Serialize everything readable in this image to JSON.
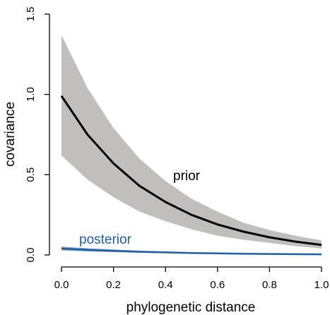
{
  "chart_data": {
    "type": "line",
    "xlabel": "phylogenetic distance",
    "ylabel": "covariance",
    "xlim": [
      0,
      1
    ],
    "ylim": [
      0,
      1.5
    ],
    "x_ticks": [
      "0.0",
      "0.2",
      "0.4",
      "0.6",
      "0.8",
      "1.0"
    ],
    "y_ticks": [
      "0.0",
      "0.5",
      "1.0",
      "1.5"
    ],
    "grid": false,
    "legend": "none",
    "annotations": {
      "prior": "prior",
      "posterior": "posterior"
    },
    "colors": {
      "prior": "#000000",
      "prior_band": "#c0bfbd",
      "posterior": "#1f5fa6"
    },
    "series": [
      {
        "name": "prior",
        "x": [
          0.0,
          0.1,
          0.2,
          0.3,
          0.4,
          0.5,
          0.6,
          0.7,
          0.8,
          0.9,
          1.0
        ],
        "y": [
          0.99,
          0.75,
          0.57,
          0.43,
          0.33,
          0.25,
          0.19,
          0.145,
          0.11,
          0.083,
          0.063
        ],
        "lower": [
          0.62,
          0.47,
          0.36,
          0.27,
          0.21,
          0.16,
          0.12,
          0.095,
          0.075,
          0.055,
          0.04
        ],
        "upper": [
          1.37,
          1.04,
          0.79,
          0.6,
          0.46,
          0.35,
          0.27,
          0.2,
          0.155,
          0.12,
          0.09
        ]
      },
      {
        "name": "posterior",
        "x": [
          0.0,
          0.1,
          0.2,
          0.3,
          0.4,
          0.5,
          0.6,
          0.7,
          0.8,
          0.9,
          1.0
        ],
        "y": [
          0.04,
          0.032,
          0.025,
          0.02,
          0.016,
          0.012,
          0.01,
          0.008,
          0.006,
          0.005,
          0.004
        ],
        "lower": [
          0.028,
          0.022,
          0.018,
          0.014,
          0.011,
          0.008,
          0.006,
          0.004,
          0.003,
          0.002,
          0.001
        ],
        "upper": [
          0.052,
          0.042,
          0.034,
          0.027,
          0.022,
          0.017,
          0.014,
          0.011,
          0.009,
          0.007,
          0.006
        ]
      }
    ]
  }
}
